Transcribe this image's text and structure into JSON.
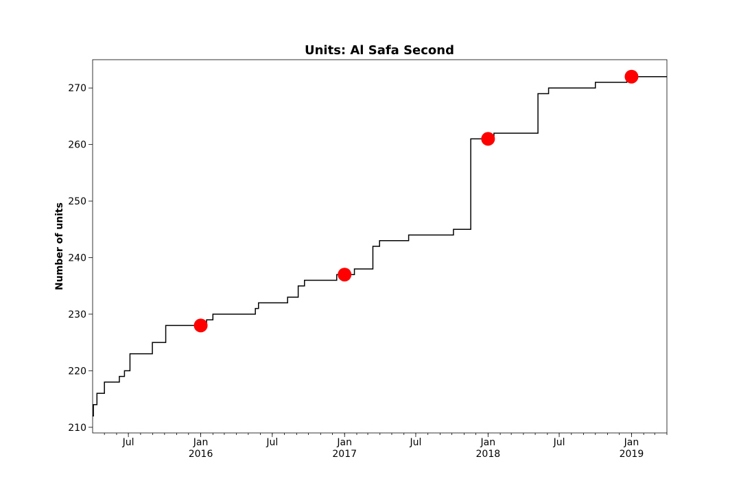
{
  "chart_data": {
    "type": "line",
    "title": "Units: Al Safa Second",
    "xlabel": "",
    "ylabel": "Number of units",
    "xlim": [
      "2015-04-01",
      "2019-04-01"
    ],
    "ylim": [
      209,
      275
    ],
    "grid": false,
    "legend": "none",
    "y_ticks": [
      210,
      220,
      230,
      240,
      250,
      260,
      270
    ],
    "x_major_ticks": [
      {
        "date": "2015-07-01",
        "label": "Jul",
        "year": ""
      },
      {
        "date": "2016-01-01",
        "label": "Jan",
        "year": "2016"
      },
      {
        "date": "2016-07-01",
        "label": "Jul",
        "year": ""
      },
      {
        "date": "2017-01-01",
        "label": "Jan",
        "year": "2017"
      },
      {
        "date": "2017-07-01",
        "label": "Jul",
        "year": ""
      },
      {
        "date": "2018-01-01",
        "label": "Jan",
        "year": "2018"
      },
      {
        "date": "2018-07-01",
        "label": "Jul",
        "year": ""
      },
      {
        "date": "2019-01-01",
        "label": "Jan",
        "year": "2019"
      }
    ],
    "series": [
      {
        "type": "step",
        "color": "#000000",
        "points": [
          {
            "x": "2015-04-01",
            "y": 212
          },
          {
            "x": "2015-04-03",
            "y": 214
          },
          {
            "x": "2015-04-12",
            "y": 216
          },
          {
            "x": "2015-05-01",
            "y": 218
          },
          {
            "x": "2015-06-08",
            "y": 219
          },
          {
            "x": "2015-06-21",
            "y": 220
          },
          {
            "x": "2015-07-05",
            "y": 223
          },
          {
            "x": "2015-08-31",
            "y": 225
          },
          {
            "x": "2015-10-04",
            "y": 228
          },
          {
            "x": "2016-01-16",
            "y": 229
          },
          {
            "x": "2016-02-01",
            "y": 230
          },
          {
            "x": "2016-05-19",
            "y": 231
          },
          {
            "x": "2016-05-27",
            "y": 232
          },
          {
            "x": "2016-08-09",
            "y": 233
          },
          {
            "x": "2016-09-05",
            "y": 235
          },
          {
            "x": "2016-09-21",
            "y": 236
          },
          {
            "x": "2016-12-12",
            "y": 237
          },
          {
            "x": "2017-01-26",
            "y": 238
          },
          {
            "x": "2017-03-14",
            "y": 242
          },
          {
            "x": "2017-03-31",
            "y": 243
          },
          {
            "x": "2017-06-13",
            "y": 244
          },
          {
            "x": "2017-10-05",
            "y": 245
          },
          {
            "x": "2017-11-18",
            "y": 261
          },
          {
            "x": "2018-01-16",
            "y": 262
          },
          {
            "x": "2018-05-08",
            "y": 269
          },
          {
            "x": "2018-06-04",
            "y": 270
          },
          {
            "x": "2018-10-01",
            "y": 271
          },
          {
            "x": "2018-12-20",
            "y": 272
          },
          {
            "x": "2019-04-01",
            "y": 272
          }
        ]
      },
      {
        "type": "scatter",
        "color": "#ff0000",
        "points": [
          {
            "x": "2016-01-01",
            "y": 228
          },
          {
            "x": "2017-01-01",
            "y": 237
          },
          {
            "x": "2018-01-01",
            "y": 261
          },
          {
            "x": "2019-01-01",
            "y": 272
          }
        ]
      }
    ]
  }
}
